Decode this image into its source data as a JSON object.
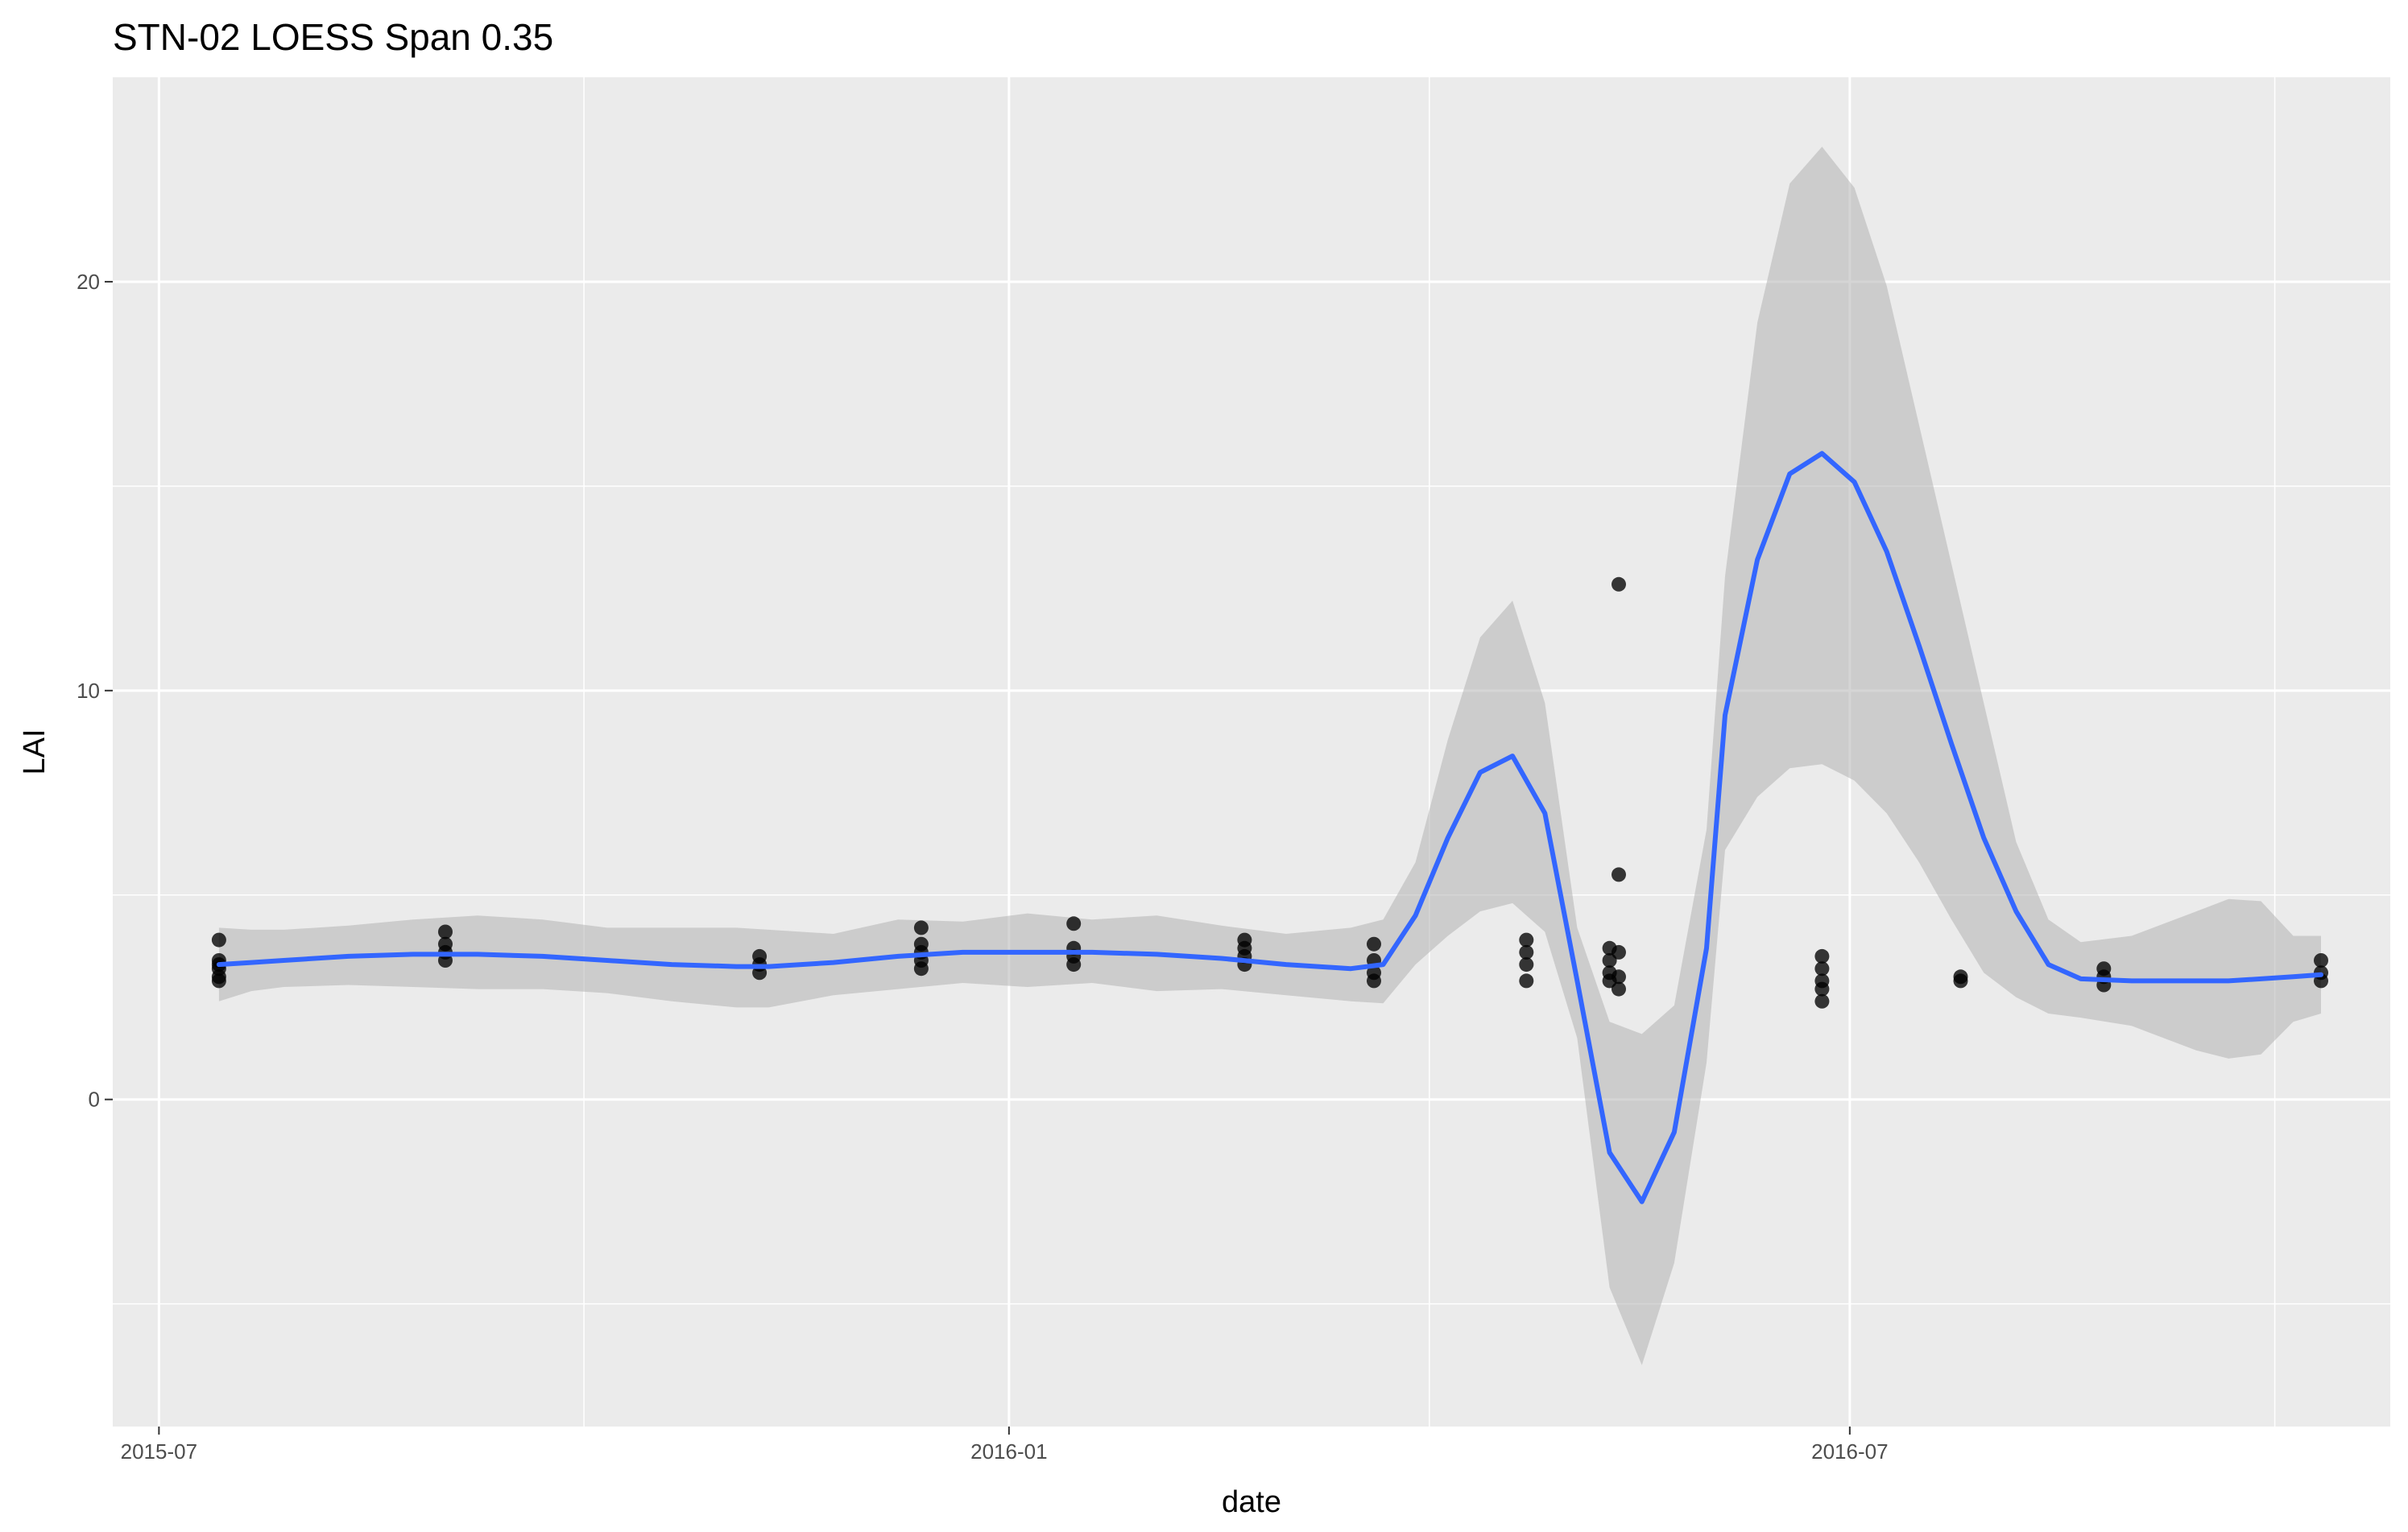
{
  "chart_data": {
    "type": "scatter",
    "title": "STN-02 LOESS Span 0.35",
    "xlabel": "date",
    "ylabel": "LAI",
    "x_type": "date",
    "xlim": [
      "2015-06-21",
      "2016-10-26"
    ],
    "ylim": [
      -8.0,
      25.0
    ],
    "x_ticks": [
      {
        "value": "2015-07-01",
        "label": "2015-07"
      },
      {
        "value": "2016-01-01",
        "label": "2016-01"
      },
      {
        "value": "2016-07-01",
        "label": "2016-07"
      }
    ],
    "x_minor_ticks": [
      "2015-10-01",
      "2016-04-01",
      "2016-10-01"
    ],
    "y_ticks": [
      0,
      10,
      20
    ],
    "y_minor_ticks": [
      -5,
      5,
      15
    ],
    "grid": true,
    "colors": {
      "panel": "#ebebeb",
      "grid": "#ffffff",
      "line": "#3366ff",
      "ribbon": "#b3b3b3",
      "points": "#000000",
      "tick_text": "#4d4d4d"
    },
    "points": [
      {
        "x": "2015-07-14",
        "y": 3.9
      },
      {
        "x": "2015-07-14",
        "y": 3.4
      },
      {
        "x": "2015-07-14",
        "y": 3.3
      },
      {
        "x": "2015-07-14",
        "y": 3.2
      },
      {
        "x": "2015-07-14",
        "y": 3.0
      },
      {
        "x": "2015-07-14",
        "y": 2.9
      },
      {
        "x": "2015-09-01",
        "y": 4.1
      },
      {
        "x": "2015-09-01",
        "y": 3.8
      },
      {
        "x": "2015-09-01",
        "y": 3.6
      },
      {
        "x": "2015-09-01",
        "y": 3.4
      },
      {
        "x": "2015-11-08",
        "y": 3.5
      },
      {
        "x": "2015-11-08",
        "y": 3.3
      },
      {
        "x": "2015-11-08",
        "y": 3.1
      },
      {
        "x": "2015-12-13",
        "y": 4.2
      },
      {
        "x": "2015-12-13",
        "y": 3.8
      },
      {
        "x": "2015-12-13",
        "y": 3.6
      },
      {
        "x": "2015-12-13",
        "y": 3.4
      },
      {
        "x": "2015-12-13",
        "y": 3.2
      },
      {
        "x": "2016-01-15",
        "y": 4.3
      },
      {
        "x": "2016-01-15",
        "y": 3.7
      },
      {
        "x": "2016-01-15",
        "y": 3.5
      },
      {
        "x": "2016-01-15",
        "y": 3.3
      },
      {
        "x": "2016-02-21",
        "y": 3.9
      },
      {
        "x": "2016-02-21",
        "y": 3.7
      },
      {
        "x": "2016-02-21",
        "y": 3.5
      },
      {
        "x": "2016-02-21",
        "y": 3.3
      },
      {
        "x": "2016-03-20",
        "y": 3.8
      },
      {
        "x": "2016-03-20",
        "y": 3.4
      },
      {
        "x": "2016-03-20",
        "y": 3.1
      },
      {
        "x": "2016-03-20",
        "y": 2.9
      },
      {
        "x": "2016-04-22",
        "y": 3.9
      },
      {
        "x": "2016-04-22",
        "y": 3.6
      },
      {
        "x": "2016-04-22",
        "y": 3.3
      },
      {
        "x": "2016-04-22",
        "y": 2.9
      },
      {
        "x": "2016-05-10",
        "y": 3.7
      },
      {
        "x": "2016-05-10",
        "y": 3.4
      },
      {
        "x": "2016-05-10",
        "y": 3.1
      },
      {
        "x": "2016-05-10",
        "y": 2.9
      },
      {
        "x": "2016-05-12",
        "y": 12.6
      },
      {
        "x": "2016-05-12",
        "y": 5.5
      },
      {
        "x": "2016-05-12",
        "y": 3.6
      },
      {
        "x": "2016-05-12",
        "y": 3.0
      },
      {
        "x": "2016-05-12",
        "y": 2.7
      },
      {
        "x": "2016-06-25",
        "y": 3.5
      },
      {
        "x": "2016-06-25",
        "y": 3.2
      },
      {
        "x": "2016-06-25",
        "y": 2.9
      },
      {
        "x": "2016-06-25",
        "y": 2.7
      },
      {
        "x": "2016-06-25",
        "y": 2.4
      },
      {
        "x": "2016-07-25",
        "y": 3.0
      },
      {
        "x": "2016-07-25",
        "y": 2.9
      },
      {
        "x": "2016-08-25",
        "y": 3.2
      },
      {
        "x": "2016-08-25",
        "y": 3.0
      },
      {
        "x": "2016-08-25",
        "y": 2.8
      },
      {
        "x": "2016-10-11",
        "y": 3.4
      },
      {
        "x": "2016-10-11",
        "y": 3.1
      },
      {
        "x": "2016-10-11",
        "y": 2.9
      }
    ],
    "smooth": [
      {
        "x": "2015-07-14",
        "y": 3.3,
        "lo": 2.4,
        "hi": 4.2
      },
      {
        "x": "2015-07-21",
        "y": 3.35,
        "lo": 2.65,
        "hi": 4.15
      },
      {
        "x": "2015-07-28",
        "y": 3.4,
        "lo": 2.75,
        "hi": 4.15
      },
      {
        "x": "2015-08-11",
        "y": 3.5,
        "lo": 2.8,
        "hi": 4.25
      },
      {
        "x": "2015-08-25",
        "y": 3.55,
        "lo": 2.75,
        "hi": 4.4
      },
      {
        "x": "2015-09-08",
        "y": 3.55,
        "lo": 2.7,
        "hi": 4.5
      },
      {
        "x": "2015-09-22",
        "y": 3.5,
        "lo": 2.7,
        "hi": 4.4
      },
      {
        "x": "2015-10-06",
        "y": 3.4,
        "lo": 2.6,
        "hi": 4.2
      },
      {
        "x": "2015-10-20",
        "y": 3.3,
        "lo": 2.4,
        "hi": 4.2
      },
      {
        "x": "2015-11-03",
        "y": 3.25,
        "lo": 2.25,
        "hi": 4.2
      },
      {
        "x": "2015-11-10",
        "y": 3.25,
        "lo": 2.25,
        "hi": 4.15
      },
      {
        "x": "2015-11-24",
        "y": 3.35,
        "lo": 2.55,
        "hi": 4.05
      },
      {
        "x": "2015-12-08",
        "y": 3.5,
        "lo": 2.7,
        "hi": 4.4
      },
      {
        "x": "2015-12-22",
        "y": 3.6,
        "lo": 2.85,
        "hi": 4.35
      },
      {
        "x": "2016-01-05",
        "y": 3.6,
        "lo": 2.75,
        "hi": 4.55
      },
      {
        "x": "2016-01-19",
        "y": 3.6,
        "lo": 2.85,
        "hi": 4.4
      },
      {
        "x": "2016-02-02",
        "y": 3.55,
        "lo": 2.65,
        "hi": 4.5
      },
      {
        "x": "2016-02-16",
        "y": 3.45,
        "lo": 2.7,
        "hi": 4.25
      },
      {
        "x": "2016-03-01",
        "y": 3.3,
        "lo": 2.55,
        "hi": 4.05
      },
      {
        "x": "2016-03-15",
        "y": 3.2,
        "lo": 2.4,
        "hi": 4.2
      },
      {
        "x": "2016-03-22",
        "y": 3.3,
        "lo": 2.35,
        "hi": 4.4
      },
      {
        "x": "2016-03-29",
        "y": 4.5,
        "lo": 3.3,
        "hi": 5.8
      },
      {
        "x": "2016-04-05",
        "y": 6.4,
        "lo": 4.0,
        "hi": 8.8
      },
      {
        "x": "2016-04-12",
        "y": 8.0,
        "lo": 4.6,
        "hi": 11.3
      },
      {
        "x": "2016-04-19",
        "y": 8.4,
        "lo": 4.8,
        "hi": 12.2
      },
      {
        "x": "2016-04-26",
        "y": 7.0,
        "lo": 4.1,
        "hi": 9.7
      },
      {
        "x": "2016-05-03",
        "y": 2.9,
        "lo": 1.5,
        "hi": 4.2
      },
      {
        "x": "2016-05-10",
        "y": -1.3,
        "lo": -4.6,
        "hi": 1.9
      },
      {
        "x": "2016-05-17",
        "y": -2.5,
        "lo": -6.5,
        "hi": 1.6
      },
      {
        "x": "2016-05-24",
        "y": -0.8,
        "lo": -4.0,
        "hi": 2.3
      },
      {
        "x": "2016-05-31",
        "y": 3.7,
        "lo": 0.9,
        "hi": 6.6
      },
      {
        "x": "2016-06-04",
        "y": 9.4,
        "lo": 6.1,
        "hi": 12.8
      },
      {
        "x": "2016-06-11",
        "y": 13.2,
        "lo": 7.4,
        "hi": 19.0
      },
      {
        "x": "2016-06-18",
        "y": 15.3,
        "lo": 8.1,
        "hi": 22.4
      },
      {
        "x": "2016-06-25",
        "y": 15.8,
        "lo": 8.2,
        "hi": 23.3
      },
      {
        "x": "2016-07-02",
        "y": 15.1,
        "lo": 7.8,
        "hi": 22.3
      },
      {
        "x": "2016-07-09",
        "y": 13.4,
        "lo": 7.0,
        "hi": 19.9
      },
      {
        "x": "2016-07-16",
        "y": 11.1,
        "lo": 5.8,
        "hi": 16.5
      },
      {
        "x": "2016-07-23",
        "y": 8.7,
        "lo": 4.4,
        "hi": 13.1
      },
      {
        "x": "2016-07-30",
        "y": 6.4,
        "lo": 3.1,
        "hi": 9.7
      },
      {
        "x": "2016-08-06",
        "y": 4.6,
        "lo": 2.5,
        "hi": 6.3
      },
      {
        "x": "2016-08-13",
        "y": 3.3,
        "lo": 2.1,
        "hi": 4.4
      },
      {
        "x": "2016-08-20",
        "y": 2.95,
        "lo": 2.0,
        "hi": 3.85
      },
      {
        "x": "2016-08-31",
        "y": 2.9,
        "lo": 1.8,
        "hi": 4.0
      },
      {
        "x": "2016-09-14",
        "y": 2.9,
        "lo": 1.2,
        "hi": 4.6
      },
      {
        "x": "2016-09-21",
        "y": 2.9,
        "lo": 1.0,
        "hi": 4.9
      },
      {
        "x": "2016-09-28",
        "y": 2.95,
        "lo": 1.1,
        "hi": 4.85
      },
      {
        "x": "2016-10-05",
        "y": 3.0,
        "lo": 1.9,
        "hi": 4.0
      },
      {
        "x": "2016-10-11",
        "y": 3.05,
        "lo": 2.1,
        "hi": 4.0
      }
    ]
  }
}
